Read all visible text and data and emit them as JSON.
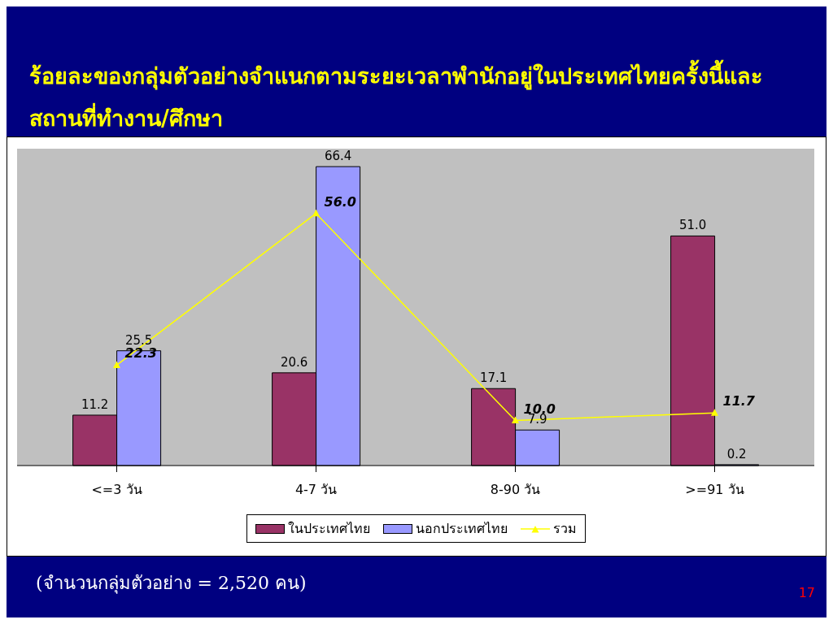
{
  "chart_data": {
    "type": "bar",
    "title": "ร้อยละของกลุ่มตัวอย่างจำแนกตามระยะเวลาพำนักอยู่ในประเทศไทยครั้งนี้และสถานที่ทำงาน/ศึกษา",
    "categories": [
      "<=3 วัน",
      "4-7 วัน",
      "8-90 วัน",
      ">=91 วัน"
    ],
    "series": [
      {
        "name": "ในประเทศไทย",
        "color": "#993366",
        "values": [
          11.2,
          20.6,
          17.1,
          51.0
        ],
        "value_labels": [
          "11.2",
          "20.6",
          "17.1",
          "51.0"
        ]
      },
      {
        "name": "นอกประเทศไทย",
        "color": "#9999ff",
        "values": [
          25.5,
          66.4,
          7.9,
          0.2
        ],
        "value_labels": [
          "25.5",
          "66.4",
          "7.9",
          "0.2"
        ]
      },
      {
        "name": "รวม",
        "type": "line",
        "color": "#ffff00",
        "marker": "triangle",
        "values": [
          22.3,
          56.0,
          10.0,
          11.7
        ],
        "value_labels": [
          "22.3",
          "56.0",
          "10.0",
          "11.7"
        ]
      }
    ],
    "legend": "bottom",
    "annotations": [
      "(จำนวนกลุ่มตัวอย่าง = 2,520 คน)",
      "17"
    ]
  }
}
